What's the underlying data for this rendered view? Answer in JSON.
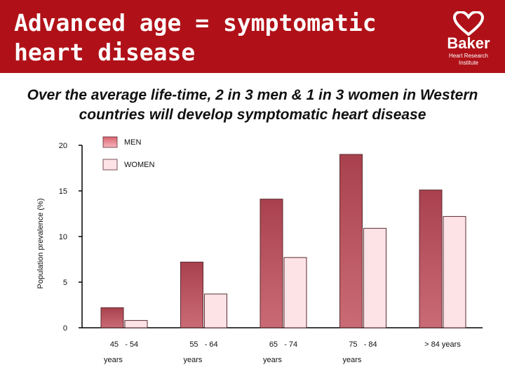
{
  "header": {
    "title": "Advanced age = symptomatic heart disease",
    "logo": {
      "name": "Baker",
      "tagline": "Heart Research Institute"
    }
  },
  "colors": {
    "header_bg": "#b01118",
    "men_bar": "#c0505c",
    "women_bar": "#fde3e6",
    "axis": "#000000"
  },
  "chart_data": {
    "type": "bar",
    "title": "Over the average life-time, 2 in 3 men & 1 in 3 women in Western countries will develop symptomatic heart disease",
    "ylabel": "Population prevalence (%)",
    "xlabel": "",
    "categories": [
      [
        "45   - 54",
        "years"
      ],
      [
        "55   - 64",
        "years"
      ],
      [
        "65   - 74",
        "years"
      ],
      [
        "75   - 84",
        "years"
      ],
      [
        "> 84 years"
      ]
    ],
    "series": [
      {
        "name": "MEN",
        "values": [
          2.2,
          7.2,
          14.1,
          19.0,
          15.1
        ]
      },
      {
        "name": "WOMEN",
        "values": [
          0.8,
          3.7,
          7.7,
          10.9,
          12.2
        ]
      }
    ],
    "ylim": [
      0,
      20
    ],
    "yticks": [
      0,
      5,
      10,
      15,
      20
    ],
    "legend": "top-left",
    "grid": false
  }
}
